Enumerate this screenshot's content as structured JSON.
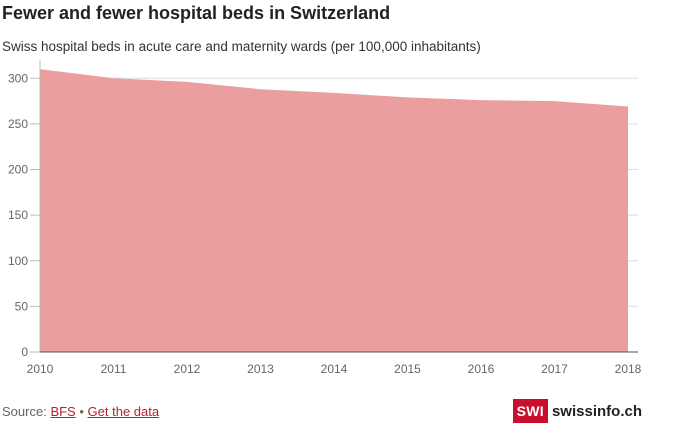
{
  "chart_data": {
    "type": "area",
    "title": "Fewer and fewer hospital beds in Switzerland",
    "subtitle": "Swiss hospital beds in acute care and maternity wards (per 100,000 inhabitants)",
    "x": [
      "2010",
      "2011",
      "2012",
      "2013",
      "2014",
      "2015",
      "2016",
      "2017",
      "2018"
    ],
    "values": [
      310,
      300,
      296,
      288,
      284,
      279,
      276,
      275,
      269
    ],
    "yticks": [
      0,
      50,
      100,
      150,
      200,
      250,
      300
    ],
    "ylim": [
      0,
      320
    ],
    "grid": true,
    "fill_color": "#eb9e9e"
  },
  "footer": {
    "source_prefix": "Source:",
    "source_link": "BFS",
    "separator": "•",
    "data_link": "Get the data"
  },
  "brand": {
    "box": "SWI",
    "name": "swissinfo.ch",
    "color": "#c8102e"
  }
}
